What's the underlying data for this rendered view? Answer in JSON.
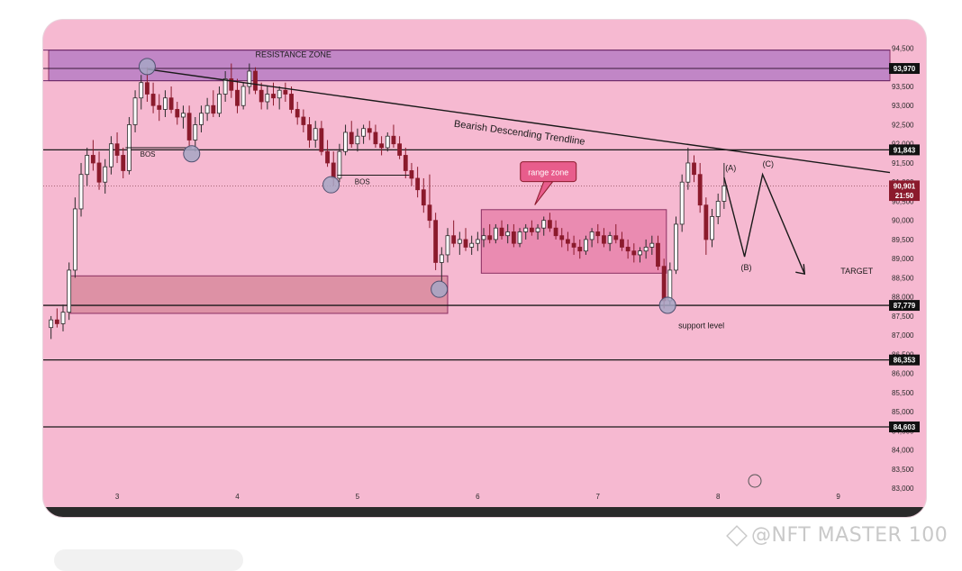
{
  "chart_data": {
    "type": "candlestick",
    "y_ticks": [
      "94,500",
      "94,000",
      "93,500",
      "93,000",
      "92,500",
      "92,000",
      "91,500",
      "91,000",
      "90,500",
      "90,000",
      "89,500",
      "89,000",
      "88,500",
      "88,000",
      "87,500",
      "87,000",
      "86,500",
      "86,000",
      "85,500",
      "85,000",
      "84,500",
      "84,000",
      "83,500",
      "83,000"
    ],
    "y_tick_values": [
      94500,
      94000,
      93500,
      93000,
      92500,
      92000,
      91500,
      91000,
      90500,
      90000,
      89500,
      89000,
      88500,
      88000,
      87500,
      87000,
      86500,
      86000,
      85500,
      85000,
      84500,
      84000,
      83500,
      83000
    ],
    "x_ticks": [
      "3",
      "4",
      "5",
      "6",
      "7",
      "8",
      "9"
    ],
    "x_tick_values": [
      3,
      4,
      5,
      6,
      7,
      8,
      9
    ],
    "xlim": [
      2.43,
      9.43
    ],
    "ylim": [
      82650,
      95100
    ],
    "grid": false,
    "price_labels": [
      {
        "text": "93,970",
        "value": 93970,
        "bg": "#111111"
      },
      {
        "text": "91,843",
        "value": 91843,
        "bg": "#111111"
      },
      {
        "text": "90,901",
        "value": 90901,
        "bg": "#8b1a2c"
      },
      {
        "text": "21:50",
        "value": 90650,
        "bg": "#8b1a2c"
      },
      {
        "text": "87,779",
        "value": 87779,
        "bg": "#111111"
      },
      {
        "text": "86,353",
        "value": 86353,
        "bg": "#111111"
      },
      {
        "text": "84,603",
        "value": 84603,
        "bg": "#111111"
      }
    ],
    "horizontal_lines": [
      91843,
      87779,
      86353,
      84603
    ],
    "current_price": 90901,
    "zones": [
      {
        "name": "resistance-zone",
        "x0": 2.43,
        "x1": 9.43,
        "y0": 93650,
        "y1": 94450,
        "color": "#b77cc4",
        "label": "RESISTANCE ZONE",
        "label_x": 4.15,
        "label_y": 94260
      },
      {
        "name": "range-zone",
        "x0": 6.03,
        "x1": 7.57,
        "y0": 88620,
        "y1": 90280,
        "color": "#e882ab",
        "label": "range zone",
        "callout_x": 6.58,
        "callout_y": 91250
      },
      {
        "name": "demand-zone",
        "x0": 2.61,
        "x1": 5.75,
        "y0": 87570,
        "y1": 88550,
        "color": "#d88a9e",
        "label": ""
      }
    ],
    "trendline": {
      "label": "Bearish Descending Trendline",
      "x0": 3.25,
      "y0": 93950,
      "x1": 9.43,
      "y1": 91250,
      "label_x": 5.8,
      "label_y": 92450
    },
    "bos": [
      {
        "label": "BOS",
        "x0": 3.07,
        "x1": 3.62,
        "y": 91900
      },
      {
        "label": "BOS",
        "x0": 4.83,
        "x1": 5.43,
        "y": 91180
      }
    ],
    "circles": [
      {
        "x": 3.25,
        "y": 94020
      },
      {
        "x": 3.62,
        "y": 91740
      },
      {
        "x": 4.78,
        "y": 90930
      },
      {
        "x": 5.68,
        "y": 88200
      },
      {
        "x": 7.58,
        "y": 87780
      }
    ],
    "projection": {
      "points": [
        [
          8.05,
          91120
        ],
        [
          8.22,
          89050
        ],
        [
          8.37,
          91200
        ],
        [
          8.72,
          88600
        ]
      ],
      "labels": [
        {
          "text": "(A)",
          "x": 8.06,
          "y": 91300
        },
        {
          "text": "(B)",
          "x": 8.19,
          "y": 88700
        },
        {
          "text": "(C)",
          "x": 8.37,
          "y": 91400
        }
      ]
    },
    "annotations": [
      {
        "text": "TARGET",
        "x": 9.02,
        "y": 88600
      },
      {
        "text": "support level",
        "x": 7.67,
        "y": 87180
      }
    ],
    "candles": [
      {
        "x": 2.45,
        "o": 87200,
        "h": 87500,
        "l": 86900,
        "c": 87400
      },
      {
        "x": 2.5,
        "o": 87400,
        "h": 87700,
        "l": 87200,
        "c": 87300
      },
      {
        "x": 2.55,
        "o": 87300,
        "h": 87800,
        "l": 87100,
        "c": 87600
      },
      {
        "x": 2.6,
        "o": 87600,
        "h": 88900,
        "l": 87400,
        "c": 88700
      },
      {
        "x": 2.65,
        "o": 88700,
        "h": 90600,
        "l": 88500,
        "c": 90300
      },
      {
        "x": 2.7,
        "o": 90300,
        "h": 91500,
        "l": 90100,
        "c": 91200
      },
      {
        "x": 2.75,
        "o": 91200,
        "h": 91900,
        "l": 90900,
        "c": 91700
      },
      {
        "x": 2.8,
        "o": 91700,
        "h": 92100,
        "l": 91300,
        "c": 91500
      },
      {
        "x": 2.85,
        "o": 91500,
        "h": 91800,
        "l": 90800,
        "c": 91000
      },
      {
        "x": 2.9,
        "o": 91000,
        "h": 91600,
        "l": 90700,
        "c": 91400
      },
      {
        "x": 2.95,
        "o": 91400,
        "h": 92200,
        "l": 91200,
        "c": 92000
      },
      {
        "x": 3.0,
        "o": 92000,
        "h": 92300,
        "l": 91500,
        "c": 91700
      },
      {
        "x": 3.05,
        "o": 91700,
        "h": 91900,
        "l": 91100,
        "c": 91300
      },
      {
        "x": 3.1,
        "o": 91300,
        "h": 92700,
        "l": 91200,
        "c": 92500
      },
      {
        "x": 3.15,
        "o": 92500,
        "h": 93400,
        "l": 92300,
        "c": 93200
      },
      {
        "x": 3.2,
        "o": 93200,
        "h": 93800,
        "l": 92900,
        "c": 93600
      },
      {
        "x": 3.25,
        "o": 93600,
        "h": 94000,
        "l": 93100,
        "c": 93300
      },
      {
        "x": 3.3,
        "o": 93300,
        "h": 93600,
        "l": 92800,
        "c": 93000
      },
      {
        "x": 3.35,
        "o": 93000,
        "h": 93300,
        "l": 92600,
        "c": 92900
      },
      {
        "x": 3.4,
        "o": 92900,
        "h": 93400,
        "l": 92700,
        "c": 93200
      },
      {
        "x": 3.45,
        "o": 93200,
        "h": 93500,
        "l": 92800,
        "c": 92900
      },
      {
        "x": 3.5,
        "o": 92900,
        "h": 93100,
        "l": 92500,
        "c": 92700
      },
      {
        "x": 3.55,
        "o": 92700,
        "h": 93000,
        "l": 92400,
        "c": 92800
      },
      {
        "x": 3.6,
        "o": 92800,
        "h": 93000,
        "l": 91900,
        "c": 92100
      },
      {
        "x": 3.65,
        "o": 92100,
        "h": 92700,
        "l": 91800,
        "c": 92500
      },
      {
        "x": 3.7,
        "o": 92500,
        "h": 93000,
        "l": 92300,
        "c": 92800
      },
      {
        "x": 3.75,
        "o": 92800,
        "h": 93200,
        "l": 92600,
        "c": 93000
      },
      {
        "x": 3.8,
        "o": 93000,
        "h": 93400,
        "l": 92700,
        "c": 92800
      },
      {
        "x": 3.85,
        "o": 92800,
        "h": 93500,
        "l": 92700,
        "c": 93300
      },
      {
        "x": 3.9,
        "o": 93300,
        "h": 93900,
        "l": 93100,
        "c": 93700
      },
      {
        "x": 3.95,
        "o": 93700,
        "h": 94100,
        "l": 93200,
        "c": 93400
      },
      {
        "x": 4.0,
        "o": 93400,
        "h": 93700,
        "l": 92800,
        "c": 93000
      },
      {
        "x": 4.05,
        "o": 93000,
        "h": 93600,
        "l": 92900,
        "c": 93500
      },
      {
        "x": 4.1,
        "o": 93500,
        "h": 94100,
        "l": 93300,
        "c": 93900
      },
      {
        "x": 4.15,
        "o": 93900,
        "h": 94000,
        "l": 93300,
        "c": 93400
      },
      {
        "x": 4.2,
        "o": 93400,
        "h": 93600,
        "l": 92900,
        "c": 93100
      },
      {
        "x": 4.25,
        "o": 93100,
        "h": 93500,
        "l": 92900,
        "c": 93300
      },
      {
        "x": 4.3,
        "o": 93300,
        "h": 93600,
        "l": 93000,
        "c": 93200
      },
      {
        "x": 4.35,
        "o": 93200,
        "h": 93500,
        "l": 92900,
        "c": 93400
      },
      {
        "x": 4.4,
        "o": 93400,
        "h": 93600,
        "l": 93100,
        "c": 93300
      },
      {
        "x": 4.45,
        "o": 93300,
        "h": 93500,
        "l": 92800,
        "c": 92900
      },
      {
        "x": 4.5,
        "o": 92900,
        "h": 93100,
        "l": 92500,
        "c": 92700
      },
      {
        "x": 4.55,
        "o": 92700,
        "h": 92900,
        "l": 92300,
        "c": 92500
      },
      {
        "x": 4.6,
        "o": 92500,
        "h": 92700,
        "l": 91900,
        "c": 92100
      },
      {
        "x": 4.65,
        "o": 92100,
        "h": 92600,
        "l": 91900,
        "c": 92400
      },
      {
        "x": 4.7,
        "o": 92400,
        "h": 92600,
        "l": 91700,
        "c": 91800
      },
      {
        "x": 4.75,
        "o": 91800,
        "h": 92100,
        "l": 91400,
        "c": 91500
      },
      {
        "x": 4.8,
        "o": 91500,
        "h": 91800,
        "l": 90900,
        "c": 91100
      },
      {
        "x": 4.85,
        "o": 91100,
        "h": 92000,
        "l": 91000,
        "c": 91800
      },
      {
        "x": 4.9,
        "o": 91800,
        "h": 92500,
        "l": 91700,
        "c": 92300
      },
      {
        "x": 4.95,
        "o": 92300,
        "h": 92600,
        "l": 91900,
        "c": 92000
      },
      {
        "x": 5.0,
        "o": 92000,
        "h": 92400,
        "l": 91800,
        "c": 92200
      },
      {
        "x": 5.05,
        "o": 92200,
        "h": 92500,
        "l": 92000,
        "c": 92400
      },
      {
        "x": 5.1,
        "o": 92400,
        "h": 92600,
        "l": 92100,
        "c": 92300
      },
      {
        "x": 5.15,
        "o": 92300,
        "h": 92500,
        "l": 91900,
        "c": 92000
      },
      {
        "x": 5.2,
        "o": 92000,
        "h": 92200,
        "l": 91700,
        "c": 91900
      },
      {
        "x": 5.25,
        "o": 91900,
        "h": 92300,
        "l": 91800,
        "c": 92200
      },
      {
        "x": 5.3,
        "o": 92200,
        "h": 92500,
        "l": 91900,
        "c": 92000
      },
      {
        "x": 5.35,
        "o": 92000,
        "h": 92200,
        "l": 91600,
        "c": 91700
      },
      {
        "x": 5.4,
        "o": 91700,
        "h": 91900,
        "l": 91100,
        "c": 91300
      },
      {
        "x": 5.45,
        "o": 91300,
        "h": 91500,
        "l": 90900,
        "c": 91100
      },
      {
        "x": 5.5,
        "o": 91100,
        "h": 91400,
        "l": 90600,
        "c": 90800
      },
      {
        "x": 5.55,
        "o": 90800,
        "h": 91100,
        "l": 90200,
        "c": 90400
      },
      {
        "x": 5.6,
        "o": 90400,
        "h": 91200,
        "l": 89800,
        "c": 90000
      },
      {
        "x": 5.65,
        "o": 90000,
        "h": 90200,
        "l": 88700,
        "c": 88900
      },
      {
        "x": 5.7,
        "o": 88900,
        "h": 89300,
        "l": 88400,
        "c": 89100
      },
      {
        "x": 5.75,
        "o": 89100,
        "h": 89800,
        "l": 88900,
        "c": 89600
      },
      {
        "x": 5.8,
        "o": 89600,
        "h": 90000,
        "l": 89300,
        "c": 89400
      },
      {
        "x": 5.85,
        "o": 89400,
        "h": 89700,
        "l": 89100,
        "c": 89500
      },
      {
        "x": 5.9,
        "o": 89500,
        "h": 89800,
        "l": 89200,
        "c": 89300
      },
      {
        "x": 5.95,
        "o": 89300,
        "h": 89600,
        "l": 89100,
        "c": 89400
      },
      {
        "x": 6.0,
        "o": 89400,
        "h": 89700,
        "l": 89200,
        "c": 89500
      },
      {
        "x": 6.05,
        "o": 89500,
        "h": 89800,
        "l": 89300,
        "c": 89600
      },
      {
        "x": 6.1,
        "o": 89600,
        "h": 89900,
        "l": 89400,
        "c": 89500
      },
      {
        "x": 6.15,
        "o": 89500,
        "h": 89900,
        "l": 89400,
        "c": 89800
      },
      {
        "x": 6.2,
        "o": 89800,
        "h": 90000,
        "l": 89500,
        "c": 89600
      },
      {
        "x": 6.25,
        "o": 89600,
        "h": 89900,
        "l": 89400,
        "c": 89700
      },
      {
        "x": 6.3,
        "o": 89700,
        "h": 89900,
        "l": 89300,
        "c": 89400
      },
      {
        "x": 6.35,
        "o": 89400,
        "h": 89800,
        "l": 89300,
        "c": 89700
      },
      {
        "x": 6.4,
        "o": 89700,
        "h": 89900,
        "l": 89500,
        "c": 89800
      },
      {
        "x": 6.45,
        "o": 89800,
        "h": 90000,
        "l": 89600,
        "c": 89700
      },
      {
        "x": 6.5,
        "o": 89700,
        "h": 89900,
        "l": 89500,
        "c": 89800
      },
      {
        "x": 6.55,
        "o": 89800,
        "h": 90100,
        "l": 89600,
        "c": 90000
      },
      {
        "x": 6.6,
        "o": 90000,
        "h": 90200,
        "l": 89700,
        "c": 89800
      },
      {
        "x": 6.65,
        "o": 89800,
        "h": 90000,
        "l": 89500,
        "c": 89600
      },
      {
        "x": 6.7,
        "o": 89600,
        "h": 89800,
        "l": 89300,
        "c": 89500
      },
      {
        "x": 6.75,
        "o": 89500,
        "h": 89700,
        "l": 89200,
        "c": 89400
      },
      {
        "x": 6.8,
        "o": 89400,
        "h": 89600,
        "l": 89100,
        "c": 89300
      },
      {
        "x": 6.85,
        "o": 89300,
        "h": 89500,
        "l": 89000,
        "c": 89200
      },
      {
        "x": 6.9,
        "o": 89200,
        "h": 89600,
        "l": 89100,
        "c": 89500
      },
      {
        "x": 6.95,
        "o": 89500,
        "h": 89800,
        "l": 89300,
        "c": 89700
      },
      {
        "x": 7.0,
        "o": 89700,
        "h": 89900,
        "l": 89400,
        "c": 89600
      },
      {
        "x": 7.05,
        "o": 89600,
        "h": 89800,
        "l": 89300,
        "c": 89400
      },
      {
        "x": 7.1,
        "o": 89400,
        "h": 89700,
        "l": 89200,
        "c": 89600
      },
      {
        "x": 7.15,
        "o": 89600,
        "h": 89900,
        "l": 89400,
        "c": 89500
      },
      {
        "x": 7.2,
        "o": 89500,
        "h": 89700,
        "l": 89200,
        "c": 89300
      },
      {
        "x": 7.25,
        "o": 89300,
        "h": 89500,
        "l": 89000,
        "c": 89200
      },
      {
        "x": 7.3,
        "o": 89200,
        "h": 89400,
        "l": 88900,
        "c": 89100
      },
      {
        "x": 7.35,
        "o": 89100,
        "h": 89300,
        "l": 88900,
        "c": 89200
      },
      {
        "x": 7.4,
        "o": 89200,
        "h": 89500,
        "l": 89000,
        "c": 89300
      },
      {
        "x": 7.45,
        "o": 89300,
        "h": 89600,
        "l": 89100,
        "c": 89400
      },
      {
        "x": 7.5,
        "o": 89400,
        "h": 89600,
        "l": 88700,
        "c": 88800
      },
      {
        "x": 7.55,
        "o": 88800,
        "h": 89000,
        "l": 87700,
        "c": 87900
      },
      {
        "x": 7.6,
        "o": 87900,
        "h": 88900,
        "l": 87800,
        "c": 88700
      },
      {
        "x": 7.65,
        "o": 88700,
        "h": 90100,
        "l": 88600,
        "c": 89900
      },
      {
        "x": 7.7,
        "o": 89900,
        "h": 91200,
        "l": 89700,
        "c": 91000
      },
      {
        "x": 7.75,
        "o": 91000,
        "h": 91900,
        "l": 90800,
        "c": 91500
      },
      {
        "x": 7.8,
        "o": 91500,
        "h": 91700,
        "l": 91000,
        "c": 91200
      },
      {
        "x": 7.85,
        "o": 91200,
        "h": 91500,
        "l": 90200,
        "c": 90400
      },
      {
        "x": 7.9,
        "o": 90400,
        "h": 90600,
        "l": 89100,
        "c": 89500
      },
      {
        "x": 7.95,
        "o": 89500,
        "h": 90300,
        "l": 89300,
        "c": 90100
      },
      {
        "x": 8.0,
        "o": 90100,
        "h": 90700,
        "l": 89900,
        "c": 90500
      },
      {
        "x": 8.05,
        "o": 90500,
        "h": 91500,
        "l": 90300,
        "c": 90900
      }
    ]
  }
}
